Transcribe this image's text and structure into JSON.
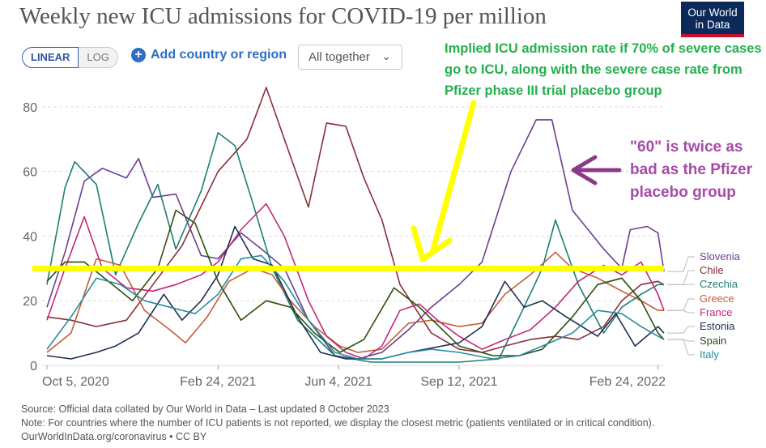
{
  "title": "Weekly new ICU admissions for COVID-19 per million",
  "logo": {
    "line1": "Our World",
    "line2": "in Data"
  },
  "controls": {
    "linear": "LINEAR",
    "log": "LOG",
    "add_country": "Add country or region",
    "select": "All together"
  },
  "annotations": {
    "green": "Implied ICU admission rate if 70% of severe cases go to ICU, along with the severe case rate from Pfizer phase III trial placebo group",
    "purple": "\"60\" is twice as bad as the Pfizer placebo group"
  },
  "footer": {
    "source": "Source: Official data collated by Our World in Data – Last updated 8 October 2023",
    "note": "Note: For countries where the number of ICU patients is not reported, we display the closest metric (patients ventilated or in critical condition).",
    "credit": "OurWorldInData.org/coronavirus • CC BY"
  },
  "colors": {
    "highlight_line": "#ffff00",
    "green_note": "#22b14c",
    "arrow_yellow": "#ffff00",
    "arrow_purple": "#8b3a8b"
  },
  "chart_data": {
    "type": "line",
    "title": "Weekly new ICU admissions for COVID-19 per million",
    "x_ticks": [
      "Oct 5, 2020",
      "Feb 24, 2021",
      "Jun 4, 2021",
      "Sep 12, 2021",
      "Feb 24, 2022"
    ],
    "y_ticks": [
      "0",
      "20",
      "40",
      "60",
      "80"
    ],
    "ylim": [
      0,
      88
    ],
    "xlim": [
      "2020-10-01",
      "2022-03-01"
    ],
    "grid": "horizontal dashed",
    "reference_line": 30,
    "series": [
      {
        "name": "Slovenia",
        "color": "#6d3e91",
        "points": [
          [
            "2020-10-05",
            18
          ],
          [
            "2020-10-20",
            35
          ],
          [
            "2020-11-05",
            57
          ],
          [
            "2020-11-20",
            61
          ],
          [
            "2020-12-10",
            58
          ],
          [
            "2020-12-20",
            64
          ],
          [
            "2021-01-01",
            52
          ],
          [
            "2021-01-20",
            53
          ],
          [
            "2021-02-10",
            34
          ],
          [
            "2021-02-24",
            33
          ],
          [
            "2021-03-15",
            41
          ],
          [
            "2021-04-01",
            36
          ],
          [
            "2021-04-20",
            30
          ],
          [
            "2021-05-10",
            14
          ],
          [
            "2021-06-01",
            3
          ],
          [
            "2021-06-20",
            2
          ],
          [
            "2021-07-10",
            4
          ],
          [
            "2021-08-01",
            11
          ],
          [
            "2021-08-20",
            18
          ],
          [
            "2021-09-12",
            25
          ],
          [
            "2021-10-01",
            32
          ],
          [
            "2021-10-25",
            60
          ],
          [
            "2021-11-15",
            76
          ],
          [
            "2021-11-28",
            76
          ],
          [
            "2021-12-15",
            48
          ],
          [
            "2022-01-10",
            36
          ],
          [
            "2022-01-25",
            30
          ],
          [
            "2022-02-01",
            42
          ],
          [
            "2022-02-15",
            43
          ],
          [
            "2022-02-24",
            41
          ],
          [
            "2022-03-01",
            29
          ]
        ]
      },
      {
        "name": "Chile",
        "color": "#883039",
        "points": [
          [
            "2020-10-05",
            15
          ],
          [
            "2020-10-25",
            14
          ],
          [
            "2020-11-15",
            12
          ],
          [
            "2020-12-10",
            14
          ],
          [
            "2021-01-01",
            25
          ],
          [
            "2021-01-25",
            37
          ],
          [
            "2021-02-24",
            60
          ],
          [
            "2021-03-20",
            70
          ],
          [
            "2021-04-05",
            86
          ],
          [
            "2021-04-20",
            70
          ],
          [
            "2021-05-10",
            49
          ],
          [
            "2021-05-25",
            75
          ],
          [
            "2021-06-10",
            74
          ],
          [
            "2021-06-25",
            58
          ],
          [
            "2021-07-10",
            45
          ],
          [
            "2021-07-25",
            25
          ],
          [
            "2021-08-20",
            10
          ],
          [
            "2021-09-12",
            5
          ],
          [
            "2021-10-01",
            4
          ],
          [
            "2021-10-20",
            6
          ],
          [
            "2021-11-10",
            8
          ],
          [
            "2021-12-01",
            9
          ],
          [
            "2021-12-20",
            8
          ],
          [
            "2022-01-10",
            12
          ],
          [
            "2022-01-25",
            20
          ],
          [
            "2022-02-10",
            25
          ],
          [
            "2022-02-24",
            26
          ],
          [
            "2022-03-01",
            25
          ]
        ]
      },
      {
        "name": "Czechia",
        "color": "#1d7f74",
        "points": [
          [
            "2020-10-05",
            25
          ],
          [
            "2020-10-20",
            55
          ],
          [
            "2020-10-28",
            63
          ],
          [
            "2020-11-15",
            56
          ],
          [
            "2020-12-01",
            28
          ],
          [
            "2020-12-20",
            44
          ],
          [
            "2021-01-05",
            56
          ],
          [
            "2021-01-20",
            36
          ],
          [
            "2021-02-10",
            54
          ],
          [
            "2021-02-24",
            72
          ],
          [
            "2021-03-10",
            68
          ],
          [
            "2021-03-25",
            50
          ],
          [
            "2021-04-10",
            30
          ],
          [
            "2021-05-01",
            14
          ],
          [
            "2021-06-01",
            3
          ],
          [
            "2021-07-01",
            1
          ],
          [
            "2021-08-01",
            1
          ],
          [
            "2021-09-12",
            1
          ],
          [
            "2021-10-15",
            2
          ],
          [
            "2021-11-01",
            15
          ],
          [
            "2021-11-20",
            30
          ],
          [
            "2021-12-01",
            45
          ],
          [
            "2021-12-20",
            25
          ],
          [
            "2022-01-10",
            10
          ],
          [
            "2022-01-25",
            18
          ],
          [
            "2022-02-10",
            22
          ],
          [
            "2022-02-24",
            25
          ],
          [
            "2022-03-01",
            25
          ]
        ]
      },
      {
        "name": "Greece",
        "color": "#c15e3a",
        "points": [
          [
            "2020-10-05",
            4
          ],
          [
            "2020-10-25",
            10
          ],
          [
            "2020-11-15",
            33
          ],
          [
            "2020-12-05",
            31
          ],
          [
            "2020-12-25",
            17
          ],
          [
            "2021-01-15",
            11
          ],
          [
            "2021-01-28",
            7
          ],
          [
            "2021-02-15",
            15
          ],
          [
            "2021-03-05",
            26
          ],
          [
            "2021-03-25",
            30
          ],
          [
            "2021-04-10",
            28
          ],
          [
            "2021-04-25",
            20
          ],
          [
            "2021-05-15",
            12
          ],
          [
            "2021-06-05",
            6
          ],
          [
            "2021-06-20",
            4
          ],
          [
            "2021-07-10",
            5
          ],
          [
            "2021-08-01",
            13
          ],
          [
            "2021-08-20",
            14
          ],
          [
            "2021-09-12",
            12
          ],
          [
            "2021-10-01",
            13
          ],
          [
            "2021-10-20",
            22
          ],
          [
            "2021-11-10",
            28
          ],
          [
            "2021-12-01",
            35
          ],
          [
            "2021-12-15",
            30
          ],
          [
            "2022-01-05",
            27
          ],
          [
            "2022-01-25",
            23
          ],
          [
            "2022-02-10",
            20
          ],
          [
            "2022-02-24",
            17
          ],
          [
            "2022-03-01",
            17
          ]
        ]
      },
      {
        "name": "France",
        "color": "#c1297a",
        "points": [
          [
            "2020-10-05",
            14
          ],
          [
            "2020-10-20",
            30
          ],
          [
            "2020-11-05",
            46
          ],
          [
            "2020-11-20",
            30
          ],
          [
            "2020-12-10",
            24
          ],
          [
            "2021-01-01",
            23
          ],
          [
            "2021-01-20",
            25
          ],
          [
            "2021-02-10",
            28
          ],
          [
            "2021-02-24",
            32
          ],
          [
            "2021-03-15",
            42
          ],
          [
            "2021-04-05",
            50
          ],
          [
            "2021-04-20",
            40
          ],
          [
            "2021-05-10",
            20
          ],
          [
            "2021-05-25",
            9
          ],
          [
            "2021-06-10",
            4
          ],
          [
            "2021-06-25",
            2
          ],
          [
            "2021-07-10",
            6
          ],
          [
            "2021-07-25",
            17
          ],
          [
            "2021-08-10",
            19
          ],
          [
            "2021-08-25",
            14
          ],
          [
            "2021-09-12",
            9
          ],
          [
            "2021-10-01",
            5
          ],
          [
            "2021-10-20",
            8
          ],
          [
            "2021-11-10",
            11
          ],
          [
            "2021-12-01",
            18
          ],
          [
            "2021-12-20",
            26
          ],
          [
            "2022-01-10",
            31
          ],
          [
            "2022-01-25",
            28
          ],
          [
            "2022-02-10",
            32
          ],
          [
            "2022-02-24",
            22
          ],
          [
            "2022-03-01",
            17
          ]
        ]
      },
      {
        "name": "Estonia",
        "color": "#1d2e52",
        "points": [
          [
            "2020-10-05",
            3
          ],
          [
            "2020-10-25",
            2
          ],
          [
            "2020-11-15",
            4
          ],
          [
            "2020-12-01",
            6
          ],
          [
            "2020-12-20",
            10
          ],
          [
            "2021-01-10",
            22
          ],
          [
            "2021-01-25",
            14
          ],
          [
            "2021-02-10",
            20
          ],
          [
            "2021-02-24",
            28
          ],
          [
            "2021-03-10",
            43
          ],
          [
            "2021-03-25",
            33
          ],
          [
            "2021-04-10",
            31
          ],
          [
            "2021-05-01",
            15
          ],
          [
            "2021-05-20",
            4
          ],
          [
            "2021-06-10",
            2
          ],
          [
            "2021-07-10",
            2
          ],
          [
            "2021-08-01",
            4
          ],
          [
            "2021-09-12",
            7
          ],
          [
            "2021-10-01",
            12
          ],
          [
            "2021-10-20",
            26
          ],
          [
            "2021-11-05",
            18
          ],
          [
            "2021-11-20",
            20
          ],
          [
            "2021-12-10",
            15
          ],
          [
            "2022-01-05",
            9
          ],
          [
            "2022-01-20",
            16
          ],
          [
            "2022-02-05",
            6
          ],
          [
            "2022-02-24",
            12
          ],
          [
            "2022-03-01",
            10
          ]
        ]
      },
      {
        "name": "Spain",
        "color": "#2e4f0f",
        "points": [
          [
            "2020-10-05",
            26
          ],
          [
            "2020-10-20",
            32
          ],
          [
            "2020-11-05",
            32
          ],
          [
            "2020-11-25",
            26
          ],
          [
            "2020-12-15",
            20
          ],
          [
            "2021-01-05",
            30
          ],
          [
            "2021-01-20",
            48
          ],
          [
            "2021-02-05",
            44
          ],
          [
            "2021-02-24",
            26
          ],
          [
            "2021-03-15",
            14
          ],
          [
            "2021-04-05",
            20
          ],
          [
            "2021-04-25",
            18
          ],
          [
            "2021-05-15",
            10
          ],
          [
            "2021-06-05",
            4
          ],
          [
            "2021-06-25",
            8
          ],
          [
            "2021-07-20",
            24
          ],
          [
            "2021-08-10",
            18
          ],
          [
            "2021-09-12",
            6
          ],
          [
            "2021-10-10",
            3
          ],
          [
            "2021-11-01",
            3
          ],
          [
            "2021-11-20",
            5
          ],
          [
            "2021-12-15",
            15
          ],
          [
            "2022-01-05",
            25
          ],
          [
            "2022-01-25",
            27
          ],
          [
            "2022-02-10",
            20
          ],
          [
            "2022-02-24",
            10
          ],
          [
            "2022-03-01",
            8
          ]
        ]
      },
      {
        "name": "Italy",
        "color": "#2a8d9e",
        "points": [
          [
            "2020-10-05",
            5
          ],
          [
            "2020-10-25",
            15
          ],
          [
            "2020-11-15",
            27
          ],
          [
            "2020-12-05",
            25
          ],
          [
            "2020-12-25",
            20
          ],
          [
            "2021-01-15",
            18
          ],
          [
            "2021-02-05",
            16
          ],
          [
            "2021-02-24",
            22
          ],
          [
            "2021-03-15",
            33
          ],
          [
            "2021-04-01",
            34
          ],
          [
            "2021-04-20",
            26
          ],
          [
            "2021-05-10",
            14
          ],
          [
            "2021-06-01",
            4
          ],
          [
            "2021-06-20",
            2
          ],
          [
            "2021-07-10",
            2
          ],
          [
            "2021-08-01",
            4
          ],
          [
            "2021-08-20",
            5
          ],
          [
            "2021-09-12",
            4
          ],
          [
            "2021-10-10",
            2
          ],
          [
            "2021-11-01",
            3
          ],
          [
            "2021-11-20",
            6
          ],
          [
            "2021-12-15",
            10
          ],
          [
            "2022-01-05",
            17
          ],
          [
            "2022-01-25",
            16
          ],
          [
            "2022-02-10",
            12
          ],
          [
            "2022-02-24",
            9
          ],
          [
            "2022-03-01",
            8
          ]
        ]
      }
    ]
  }
}
